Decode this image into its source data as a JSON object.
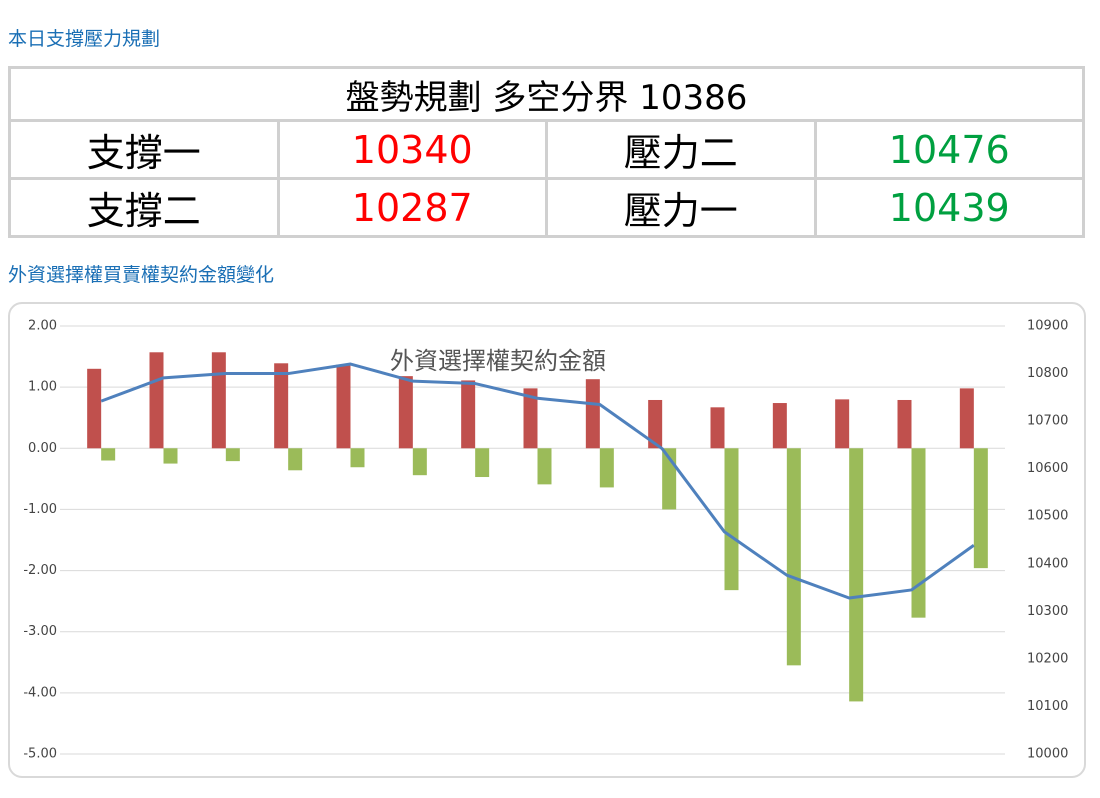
{
  "header": {
    "title": "本日支撐壓力規劃"
  },
  "table": {
    "title": "盤勢規劃 多空分界 10386",
    "rows": [
      [
        "支撐一",
        "10340",
        "壓力二",
        "10476"
      ],
      [
        "支撐二",
        "10287",
        "壓力一",
        "10439"
      ]
    ]
  },
  "section": {
    "title": "外資選擇權買賣權契約金額變化"
  },
  "chart_data": {
    "type": "bar",
    "title": "外資選擇權契約金額",
    "categories": [
      null,
      null,
      null,
      null,
      null,
      null,
      null,
      null,
      null,
      null,
      null,
      null,
      null,
      null,
      null
    ],
    "series": [
      {
        "type": "bar",
        "color": "#c0504d",
        "values": [
          1.3,
          1.57,
          1.57,
          1.39,
          1.37,
          1.18,
          1.11,
          0.98,
          1.13,
          0.79,
          0.67,
          0.74,
          0.8,
          0.79,
          0.98
        ]
      },
      {
        "type": "bar",
        "color": "#9bbb59",
        "values": [
          -0.2,
          -0.25,
          -0.21,
          -0.36,
          -0.31,
          -0.44,
          -0.47,
          -0.59,
          -0.64,
          -1.0,
          -2.32,
          -3.55,
          -4.14,
          -2.77,
          -1.96
        ]
      },
      {
        "type": "line",
        "axis": "y2",
        "color": "#4f81bd",
        "values": [
          10742,
          10791,
          10800,
          10800,
          10820,
          10784,
          10779,
          10748,
          10735,
          10642,
          10467,
          10376,
          10328,
          10345,
          10439
        ]
      }
    ],
    "ylim": [
      -5,
      2
    ],
    "yticks": [
      {
        "value": 2,
        "label": "2.00"
      },
      {
        "value": 1,
        "label": "1.00"
      },
      {
        "value": 0,
        "label": "0.00"
      },
      {
        "value": -1,
        "label": "-1.00"
      },
      {
        "value": -2,
        "label": "-2.00"
      },
      {
        "value": -3,
        "label": "-3.00"
      },
      {
        "value": -4,
        "label": "-4.00"
      },
      {
        "value": -5,
        "label": "-5.00"
      }
    ],
    "y2lim": [
      10000,
      10900
    ],
    "y2ticks": [
      10900,
      10800,
      10700,
      10600,
      10500,
      10400,
      10300,
      10200,
      10100,
      10000
    ],
    "grid": true
  }
}
